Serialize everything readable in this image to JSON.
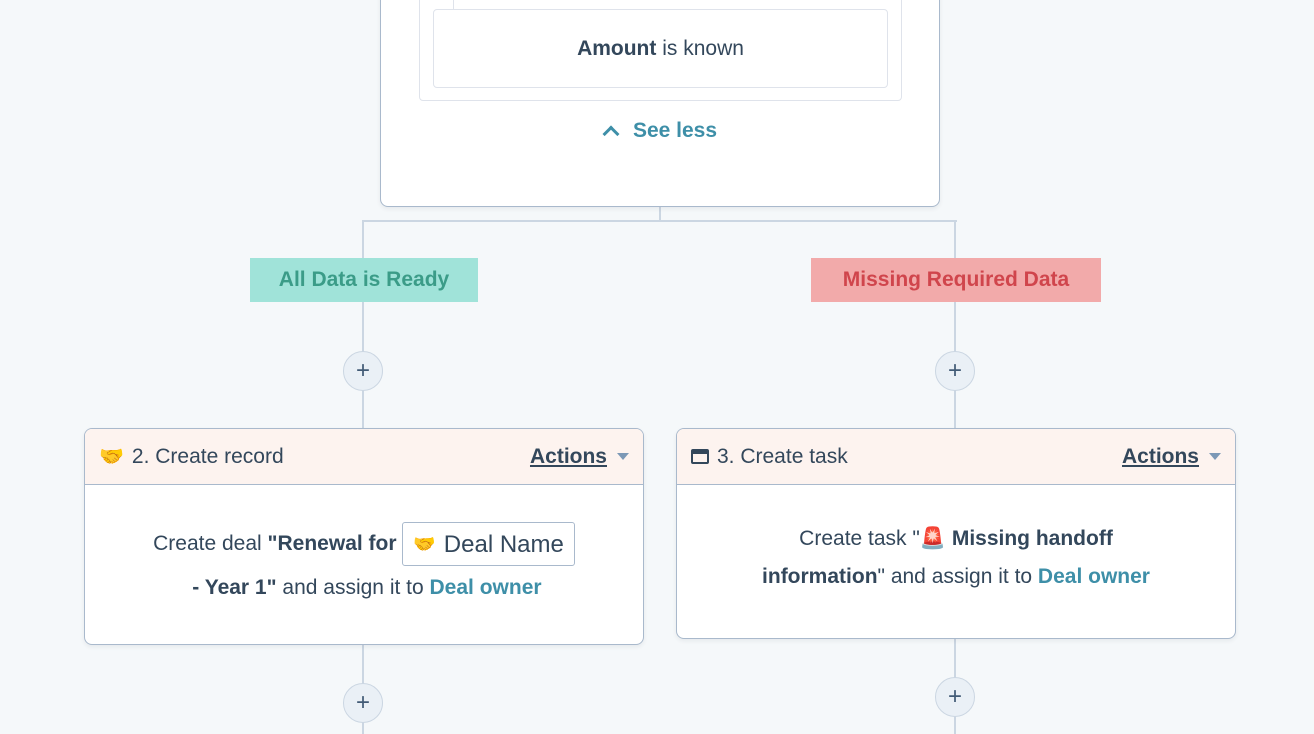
{
  "top_card": {
    "condition_bold": "Amount",
    "condition_rest": " is known",
    "see_less": "See less"
  },
  "branches": [
    {
      "label": "All Data is Ready",
      "bg": "#a0e3d9",
      "color": "#3b9c88"
    },
    {
      "label": "Missing Required Data",
      "bg": "#f2aaaa",
      "color": "#d0454c"
    }
  ],
  "add_step_symbol": "+",
  "cards": [
    {
      "icon": "handshake-icon",
      "title": "2. Create record",
      "actions_label": "Actions",
      "text_prefix": "Create deal ",
      "bold_start": "\"Renewal for ",
      "token_label": "Deal Name",
      "bold_end": " - Year 1\"",
      "text_mid": " and assign it to ",
      "owner": "Deal owner"
    },
    {
      "icon": "task-icon",
      "title": "3. Create task",
      "actions_label": "Actions",
      "text_prefix": "Create task \"",
      "emoji": "🚨",
      "bold": " Missing handoff information",
      "text_mid": "\" and assign it to ",
      "owner": "Deal owner"
    }
  ]
}
